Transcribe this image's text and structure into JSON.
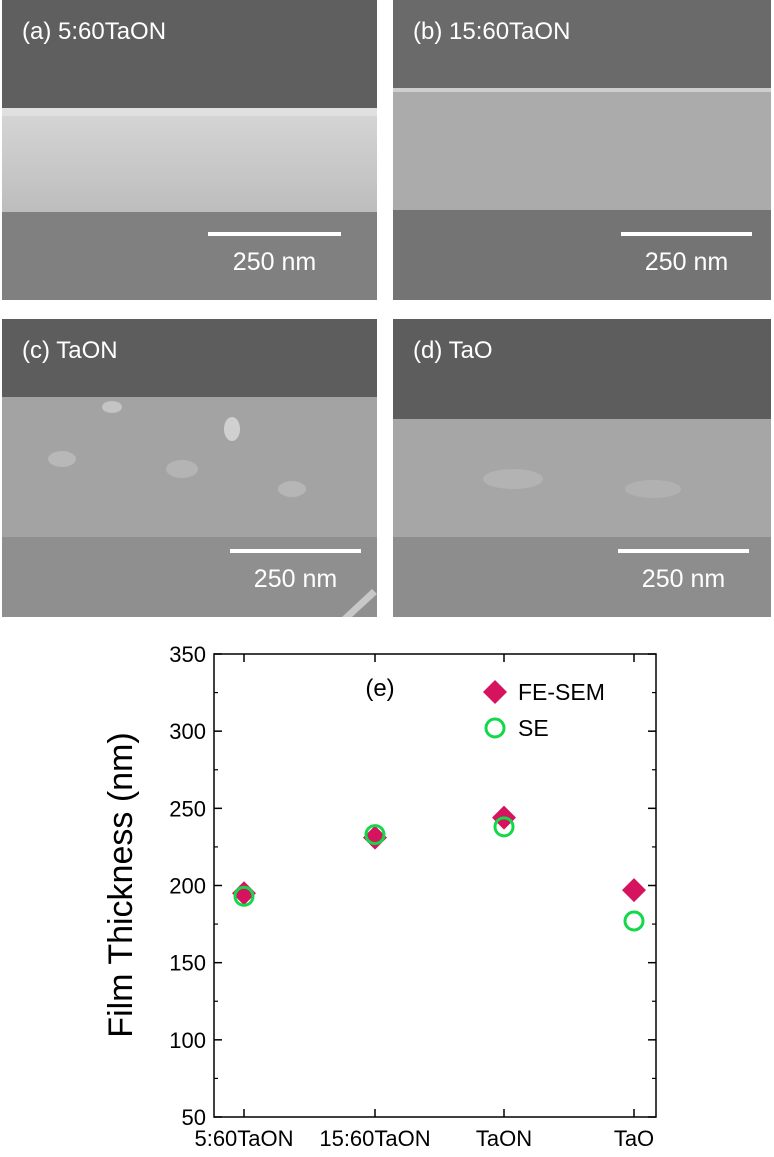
{
  "panels": [
    {
      "label": "(a) 5:60TaON",
      "scale": "250 nm"
    },
    {
      "label": "(b) 15:60TaON",
      "scale": "250 nm"
    },
    {
      "label": "(c) TaON",
      "scale": "250 nm"
    },
    {
      "label": "(d) TaO",
      "scale": "250 nm"
    }
  ],
  "chart_data": {
    "type": "scatter",
    "annotation": "(e)",
    "ylabel": "Film Thickness (nm)",
    "xlabel": "",
    "categories": [
      "5:60TaON",
      "15:60TaON",
      "TaON",
      "TaO"
    ],
    "ylim": [
      50,
      350
    ],
    "yticks": [
      50,
      100,
      150,
      200,
      250,
      300,
      350
    ],
    "legend_position": "top-right",
    "grid": false,
    "series": [
      {
        "name": "FE-SEM",
        "marker": "diamond",
        "color": "#d6135f",
        "values": [
          195,
          231,
          244,
          197
        ]
      },
      {
        "name": "SE",
        "marker": "open-circle",
        "color": "#12d84a",
        "values": [
          193,
          233,
          238,
          177
        ]
      }
    ]
  }
}
